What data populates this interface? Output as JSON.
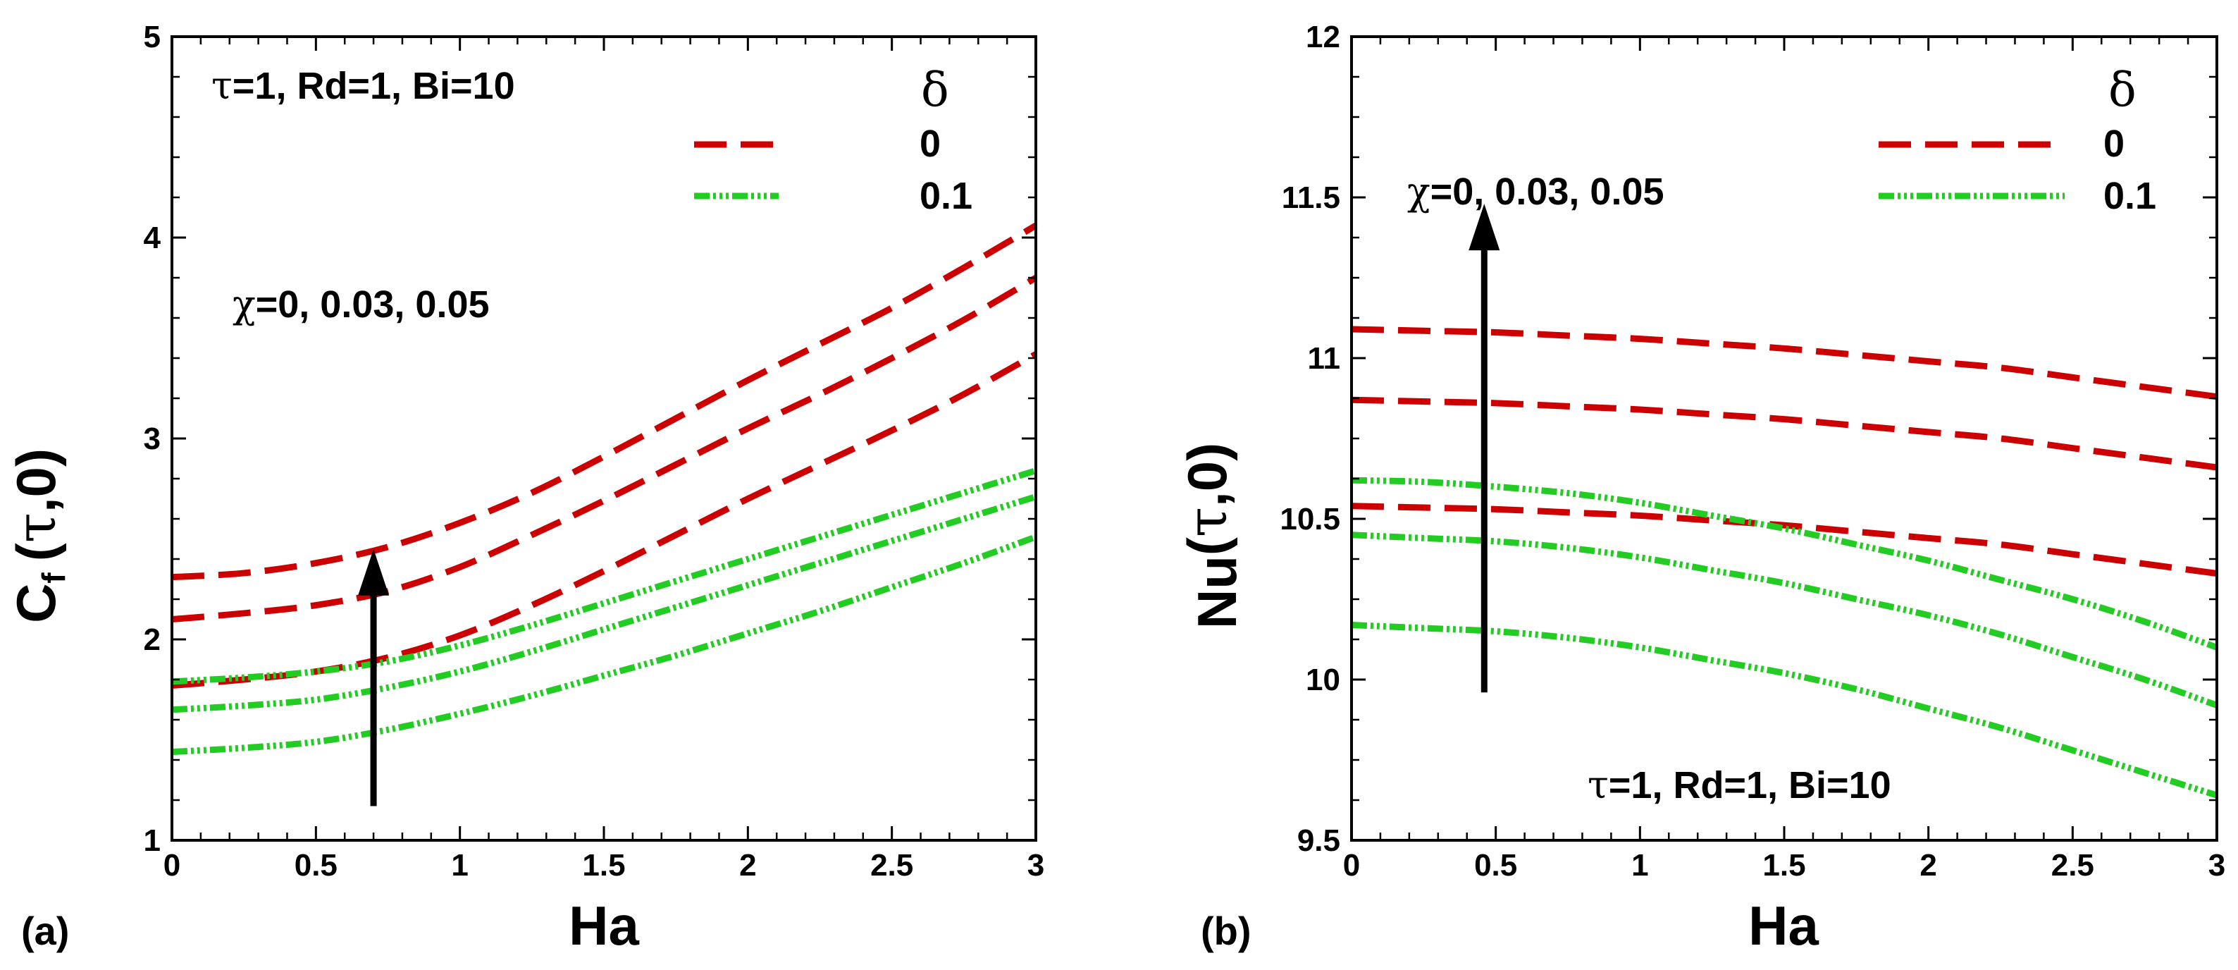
{
  "colors": {
    "delta0": "#cc0000",
    "delta01": "#22cc22",
    "axis": "#000000"
  },
  "chart_data": [
    {
      "type": "line",
      "panel_label": "(a)",
      "xlabel": "Ha",
      "ylabel": {
        "main": "C",
        "sub": "f",
        "paren": "(τ,0)"
      },
      "xlim": [
        0,
        3
      ],
      "ylim": [
        1,
        5
      ],
      "xticks": [
        "0",
        "0.5",
        "1",
        "1.5",
        "2",
        "2.5",
        "3"
      ],
      "yticks": [
        "1",
        "2",
        "3",
        "4",
        "5"
      ],
      "params_text": "τ=1, Rd=1, Bi=10",
      "chi_text": "χ=0, 0.03, 0.05",
      "legend_title": "δ",
      "legend": [
        {
          "label": "0",
          "color_key": "delta0"
        },
        {
          "label": "0.1",
          "color_key": "delta01"
        }
      ],
      "arrow": {
        "x": 0.7,
        "y_from": 1.17,
        "y_to": 2.45
      },
      "x": [
        0,
        0.25,
        0.5,
        0.75,
        1,
        1.25,
        1.5,
        1.75,
        2,
        2.25,
        2.5,
        2.75,
        3
      ],
      "series": [
        {
          "name": "δ=0, χ=0",
          "color_key": "delta0",
          "values": [
            1.77,
            1.8,
            1.84,
            1.91,
            2.02,
            2.17,
            2.34,
            2.52,
            2.7,
            2.87,
            3.04,
            3.22,
            3.42
          ]
        },
        {
          "name": "δ=0, χ=0.03",
          "color_key": "delta0",
          "values": [
            2.1,
            2.13,
            2.17,
            2.24,
            2.36,
            2.52,
            2.69,
            2.87,
            3.05,
            3.22,
            3.4,
            3.59,
            3.8
          ]
        },
        {
          "name": "δ=0, χ=0.05",
          "color_key": "delta0",
          "values": [
            2.31,
            2.33,
            2.38,
            2.46,
            2.58,
            2.73,
            2.91,
            3.1,
            3.29,
            3.47,
            3.65,
            3.85,
            4.06
          ]
        },
        {
          "name": "δ=0.1, χ=0",
          "color_key": "delta01",
          "values": [
            1.44,
            1.46,
            1.49,
            1.55,
            1.63,
            1.72,
            1.82,
            1.92,
            2.03,
            2.14,
            2.26,
            2.38,
            2.51
          ]
        },
        {
          "name": "δ=0.1, χ=0.03",
          "color_key": "delta01",
          "values": [
            1.65,
            1.67,
            1.7,
            1.76,
            1.84,
            1.94,
            2.05,
            2.16,
            2.27,
            2.38,
            2.49,
            2.6,
            2.71
          ]
        },
        {
          "name": "δ=0.1, χ=0.05",
          "color_key": "delta01",
          "values": [
            1.79,
            1.81,
            1.84,
            1.89,
            1.97,
            2.07,
            2.18,
            2.29,
            2.4,
            2.51,
            2.62,
            2.73,
            2.84
          ]
        }
      ]
    },
    {
      "type": "line",
      "panel_label": "(b)",
      "xlabel": "Ha",
      "ylabel": {
        "main": "Nu",
        "sub": "",
        "paren": "(τ,0)"
      },
      "xlim": [
        0,
        3
      ],
      "ylim": [
        9.5,
        12
      ],
      "xticks": [
        "0",
        "0.5",
        "1",
        "1.5",
        "2",
        "2.5",
        "3"
      ],
      "yticks": [
        "9.5",
        "10",
        "10.5",
        "11",
        "11.5",
        "12"
      ],
      "params_text": "τ=1, Rd=1, Bi=10",
      "chi_text": "χ=0, 0.03, 0.05",
      "legend_title": "δ",
      "legend": [
        {
          "label": "0",
          "color_key": "delta0"
        },
        {
          "label": "0.1",
          "color_key": "delta01"
        }
      ],
      "arrow": {
        "x": 0.46,
        "y_from": 9.96,
        "y_to": 11.48
      },
      "x": [
        0,
        0.25,
        0.5,
        0.75,
        1,
        1.25,
        1.5,
        1.75,
        2,
        2.25,
        2.5,
        2.75,
        3
      ],
      "series": [
        {
          "name": "δ=0, χ=0.05",
          "color_key": "delta0",
          "values": [
            11.09,
            11.085,
            11.08,
            11.07,
            11.06,
            11.045,
            11.03,
            11.01,
            10.99,
            10.97,
            10.94,
            10.91,
            10.88
          ]
        },
        {
          "name": "δ=0, χ=0.03",
          "color_key": "delta0",
          "values": [
            10.87,
            10.865,
            10.86,
            10.85,
            10.84,
            10.825,
            10.81,
            10.79,
            10.77,
            10.75,
            10.72,
            10.69,
            10.66
          ]
        },
        {
          "name": "δ=0, χ=0",
          "color_key": "delta0",
          "values": [
            10.54,
            10.535,
            10.53,
            10.52,
            10.51,
            10.495,
            10.48,
            10.46,
            10.44,
            10.42,
            10.39,
            10.36,
            10.33
          ]
        },
        {
          "name": "δ=0.1, χ=0.05",
          "color_key": "delta01",
          "values": [
            10.62,
            10.615,
            10.6,
            10.58,
            10.55,
            10.51,
            10.47,
            10.42,
            10.37,
            10.31,
            10.25,
            10.18,
            10.1
          ]
        },
        {
          "name": "δ=0.1, χ=0.03",
          "color_key": "delta01",
          "values": [
            10.45,
            10.44,
            10.43,
            10.41,
            10.38,
            10.34,
            10.3,
            10.25,
            10.2,
            10.14,
            10.07,
            10.0,
            9.92
          ]
        },
        {
          "name": "δ=0.1, χ=0",
          "color_key": "delta01",
          "values": [
            10.17,
            10.16,
            10.15,
            10.13,
            10.1,
            10.06,
            10.02,
            9.97,
            9.91,
            9.85,
            9.78,
            9.71,
            9.64
          ]
        }
      ]
    }
  ]
}
